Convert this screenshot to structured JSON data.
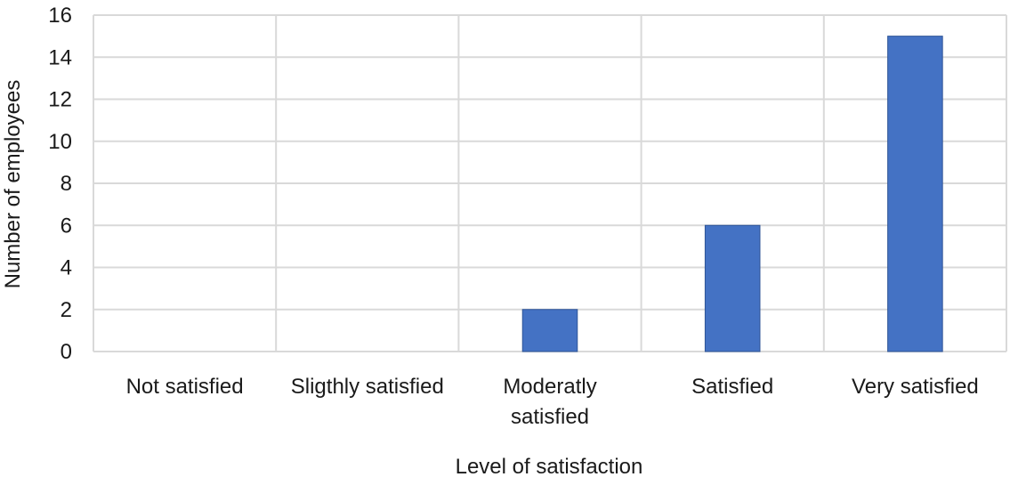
{
  "chart_data": {
    "type": "bar",
    "categories": [
      [
        "Not satisfied"
      ],
      [
        "Sligthly satisfied"
      ],
      [
        "Moderatly",
        "satisfied"
      ],
      [
        "Satisfied"
      ],
      [
        "Very satisfied"
      ]
    ],
    "values": [
      0,
      0,
      2,
      6,
      15
    ],
    "xlabel": "Level of satisfaction",
    "ylabel": "Number of employees",
    "ylim": [
      0,
      16
    ],
    "yticks": [
      0,
      2,
      4,
      6,
      8,
      10,
      12,
      14,
      16
    ],
    "grid": true,
    "legend": "none",
    "bar_color": "#4472c4"
  }
}
